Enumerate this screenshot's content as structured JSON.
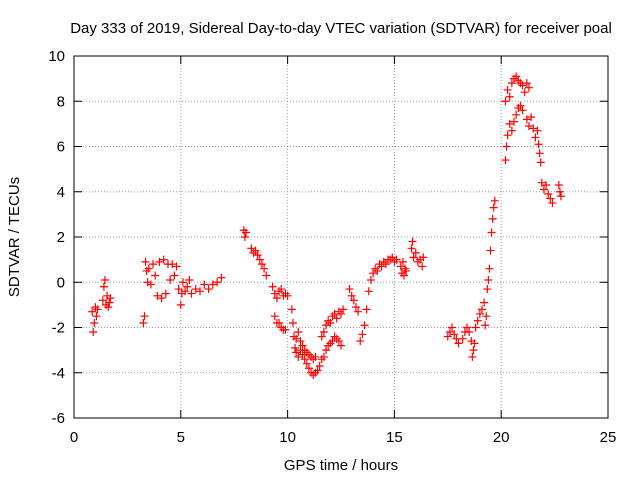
{
  "chart_data": {
    "type": "scatter",
    "title": "Day 333 of 2019, Sidereal Day-to-day VTEC variation (SDTVAR) for receiver poal",
    "xlabel": "GPS time / hours",
    "ylabel": "SDTVAR / TECUs",
    "xlim": [
      0,
      25
    ],
    "ylim": [
      -6,
      10
    ],
    "xticks": [
      0,
      5,
      10,
      15,
      20,
      25
    ],
    "yticks": [
      -6,
      -4,
      -2,
      0,
      2,
      4,
      6,
      8,
      10
    ],
    "grid": true,
    "marker": "+",
    "color": "#ff0000",
    "series": [
      {
        "name": "SDTVAR",
        "points": [
          [
            0.85,
            -1.3
          ],
          [
            0.9,
            -2.2
          ],
          [
            0.95,
            -1.8
          ],
          [
            1.0,
            -1.1
          ],
          [
            1.05,
            -1.5
          ],
          [
            1.1,
            -1.2
          ],
          [
            1.35,
            -0.8
          ],
          [
            1.4,
            -0.2
          ],
          [
            1.45,
            0.1
          ],
          [
            1.5,
            -1.0
          ],
          [
            1.55,
            -0.6
          ],
          [
            1.6,
            -1.1
          ],
          [
            1.65,
            -0.9
          ],
          [
            1.7,
            -0.7
          ],
          [
            3.25,
            -1.8
          ],
          [
            3.3,
            -1.5
          ],
          [
            3.35,
            0.9
          ],
          [
            3.4,
            0.5
          ],
          [
            3.45,
            0.0
          ],
          [
            3.5,
            0.6
          ],
          [
            3.6,
            -0.1
          ],
          [
            3.7,
            0.8
          ],
          [
            3.8,
            0.3
          ],
          [
            3.9,
            -0.6
          ],
          [
            4.0,
            0.9
          ],
          [
            4.1,
            -0.7
          ],
          [
            4.2,
            1.0
          ],
          [
            4.3,
            -0.5
          ],
          [
            4.4,
            0.8
          ],
          [
            4.5,
            0.1
          ],
          [
            4.6,
            0.8
          ],
          [
            4.7,
            0.3
          ],
          [
            4.8,
            0.7
          ],
          [
            4.9,
            -0.3
          ],
          [
            5.0,
            -1.0
          ],
          [
            5.05,
            -0.5
          ],
          [
            5.1,
            0.0
          ],
          [
            5.2,
            -0.4
          ],
          [
            5.3,
            -0.2
          ],
          [
            5.4,
            0.1
          ],
          [
            5.5,
            -0.5
          ],
          [
            5.7,
            -0.3
          ],
          [
            5.9,
            -0.4
          ],
          [
            6.1,
            -0.1
          ],
          [
            6.3,
            -0.3
          ],
          [
            6.5,
            -0.1
          ],
          [
            6.7,
            0.0
          ],
          [
            6.9,
            0.2
          ],
          [
            7.95,
            2.3
          ],
          [
            8.0,
            2.0
          ],
          [
            8.05,
            2.2
          ],
          [
            8.3,
            1.5
          ],
          [
            8.4,
            1.3
          ],
          [
            8.5,
            1.4
          ],
          [
            8.6,
            1.2
          ],
          [
            8.7,
            1.0
          ],
          [
            8.8,
            0.8
          ],
          [
            8.9,
            0.6
          ],
          [
            9.0,
            0.3
          ],
          [
            9.3,
            -0.2
          ],
          [
            9.4,
            -0.5
          ],
          [
            9.5,
            -0.7
          ],
          [
            9.6,
            -0.4
          ],
          [
            9.7,
            -0.3
          ],
          [
            9.8,
            -0.6
          ],
          [
            9.9,
            -0.5
          ],
          [
            10.0,
            -0.6
          ],
          [
            9.4,
            -1.5
          ],
          [
            9.5,
            -1.8
          ],
          [
            9.6,
            -1.8
          ],
          [
            9.7,
            -2.0
          ],
          [
            9.8,
            -2.1
          ],
          [
            9.9,
            -2.1
          ],
          [
            10.2,
            -1.2
          ],
          [
            10.25,
            -1.8
          ],
          [
            10.3,
            -2.4
          ],
          [
            10.35,
            -2.9
          ],
          [
            10.4,
            -3.1
          ],
          [
            10.5,
            -3.3
          ],
          [
            10.6,
            -3.0
          ],
          [
            10.7,
            -3.2
          ],
          [
            10.8,
            -3.4
          ],
          [
            10.9,
            -3.6
          ],
          [
            11.0,
            -3.8
          ],
          [
            11.1,
            -4.0
          ],
          [
            11.2,
            -4.1
          ],
          [
            11.3,
            -4.0
          ],
          [
            11.4,
            -3.9
          ],
          [
            11.5,
            -3.7
          ],
          [
            10.4,
            -2.5
          ],
          [
            10.5,
            -2.2
          ],
          [
            10.6,
            -2.6
          ],
          [
            10.7,
            -2.8
          ],
          [
            10.8,
            -3.0
          ],
          [
            10.9,
            -3.1
          ],
          [
            11.0,
            -3.2
          ],
          [
            11.1,
            -3.3
          ],
          [
            11.2,
            -3.4
          ],
          [
            11.3,
            -3.3
          ],
          [
            11.6,
            -3.4
          ],
          [
            11.7,
            -3.3
          ],
          [
            11.8,
            -3.0
          ],
          [
            11.9,
            -2.8
          ],
          [
            12.0,
            -2.7
          ],
          [
            12.1,
            -2.6
          ],
          [
            12.2,
            -2.4
          ],
          [
            12.3,
            -2.5
          ],
          [
            12.4,
            -2.6
          ],
          [
            12.5,
            -2.8
          ],
          [
            11.6,
            -2.4
          ],
          [
            11.7,
            -2.2
          ],
          [
            11.8,
            -1.9
          ],
          [
            11.9,
            -1.7
          ],
          [
            12.0,
            -1.8
          ],
          [
            12.1,
            -1.5
          ],
          [
            12.2,
            -1.4
          ],
          [
            12.3,
            -1.6
          ],
          [
            12.4,
            -1.3
          ],
          [
            12.5,
            -1.4
          ],
          [
            12.6,
            -1.2
          ],
          [
            12.9,
            -0.3
          ],
          [
            13.0,
            -0.6
          ],
          [
            13.1,
            -0.8
          ],
          [
            13.2,
            -1.1
          ],
          [
            13.3,
            -1.3
          ],
          [
            13.4,
            -2.6
          ],
          [
            13.5,
            -2.3
          ],
          [
            13.6,
            -1.9
          ],
          [
            13.7,
            -1.2
          ],
          [
            13.8,
            -0.4
          ],
          [
            13.9,
            0.1
          ],
          [
            14.0,
            0.4
          ],
          [
            14.1,
            0.6
          ],
          [
            14.2,
            0.5
          ],
          [
            14.3,
            0.8
          ],
          [
            14.4,
            0.7
          ],
          [
            14.5,
            0.9
          ],
          [
            14.6,
            0.8
          ],
          [
            14.7,
            1.0
          ],
          [
            14.8,
            1.0
          ],
          [
            14.9,
            1.1
          ],
          [
            15.0,
            0.9
          ],
          [
            15.1,
            1.0
          ],
          [
            15.3,
            0.7
          ],
          [
            15.35,
            0.4
          ],
          [
            15.4,
            0.9
          ],
          [
            15.45,
            0.3
          ],
          [
            15.5,
            0.6
          ],
          [
            15.55,
            0.5
          ],
          [
            15.8,
            1.5
          ],
          [
            15.85,
            1.8
          ],
          [
            15.9,
            1.1
          ],
          [
            16.0,
            1.3
          ],
          [
            16.1,
            0.9
          ],
          [
            16.2,
            1.0
          ],
          [
            16.3,
            0.7
          ],
          [
            16.35,
            1.1
          ],
          [
            17.5,
            -2.4
          ],
          [
            17.6,
            -2.2
          ],
          [
            17.7,
            -2.0
          ],
          [
            17.8,
            -2.3
          ],
          [
            17.9,
            -2.5
          ],
          [
            18.0,
            -2.7
          ],
          [
            18.2,
            -2.5
          ],
          [
            18.3,
            -2.2
          ],
          [
            18.4,
            -2.0
          ],
          [
            18.5,
            -2.2
          ],
          [
            18.6,
            -2.6
          ],
          [
            18.65,
            -3.3
          ],
          [
            18.7,
            -3.0
          ],
          [
            18.75,
            -2.7
          ],
          [
            18.8,
            -2.0
          ],
          [
            18.9,
            -1.7
          ],
          [
            19.0,
            -1.4
          ],
          [
            19.1,
            -1.2
          ],
          [
            19.2,
            -0.9
          ],
          [
            19.25,
            -1.9
          ],
          [
            19.3,
            -1.5
          ],
          [
            19.35,
            -0.3
          ],
          [
            19.4,
            0.1
          ],
          [
            19.45,
            0.6
          ],
          [
            19.5,
            1.4
          ],
          [
            19.55,
            2.2
          ],
          [
            19.6,
            2.8
          ],
          [
            19.65,
            3.3
          ],
          [
            19.7,
            3.6
          ],
          [
            20.2,
            5.4
          ],
          [
            20.25,
            6.0
          ],
          [
            20.3,
            6.5
          ],
          [
            20.4,
            7.0
          ],
          [
            20.5,
            6.7
          ],
          [
            20.6,
            7.1
          ],
          [
            20.7,
            7.4
          ],
          [
            20.8,
            7.7
          ],
          [
            20.9,
            7.8
          ],
          [
            21.0,
            7.6
          ],
          [
            20.2,
            8.0
          ],
          [
            20.3,
            8.5
          ],
          [
            20.4,
            8.2
          ],
          [
            20.5,
            8.8
          ],
          [
            20.6,
            9.0
          ],
          [
            20.7,
            9.1
          ],
          [
            20.8,
            8.9
          ],
          [
            20.9,
            8.8
          ],
          [
            21.0,
            8.7
          ],
          [
            21.1,
            8.4
          ],
          [
            21.2,
            8.8
          ],
          [
            21.3,
            8.6
          ],
          [
            21.2,
            7.2
          ],
          [
            21.3,
            6.9
          ],
          [
            21.4,
            7.3
          ],
          [
            21.5,
            6.8
          ],
          [
            21.6,
            6.4
          ],
          [
            21.7,
            6.7
          ],
          [
            21.75,
            6.1
          ],
          [
            21.8,
            5.7
          ],
          [
            21.85,
            5.3
          ],
          [
            21.9,
            4.4
          ],
          [
            22.0,
            4.1
          ],
          [
            22.1,
            4.3
          ],
          [
            22.2,
            3.9
          ],
          [
            22.3,
            3.7
          ],
          [
            22.4,
            3.5
          ],
          [
            22.7,
            4.3
          ],
          [
            22.75,
            4.0
          ],
          [
            22.8,
            3.8
          ]
        ]
      }
    ]
  }
}
